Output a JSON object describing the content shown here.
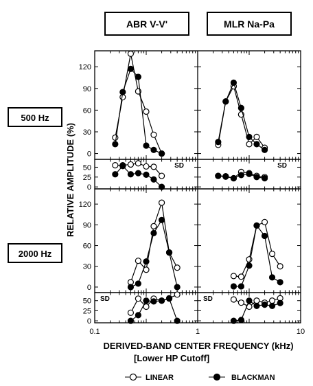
{
  "column_headers": [
    "ABR V-V'",
    "MLR Na-Pa"
  ],
  "row_labels": [
    "500 Hz",
    "2000 Hz"
  ],
  "ylabel": "RELATIVE AMPLITUDE (%)",
  "xlabel_line1": "DERIVED-BAND CENTER FREQUENCY (kHz)",
  "xlabel_line2": "[Lower HP Cutoff]",
  "panel_tag": "SD",
  "x_tick_labels": [
    "0.1",
    "1",
    "10"
  ],
  "amp_ticks": [
    "0",
    "30",
    "60",
    "90",
    "120"
  ],
  "sd_ticks": [
    "0",
    "25",
    "50"
  ],
  "legend": [
    {
      "label": "LINEAR",
      "marker": "open-circle",
      "color": "#ffffff"
    },
    {
      "label": "BLACKMAN",
      "marker": "filled-circle",
      "color": "#000000"
    }
  ],
  "chart_data": {
    "type": "line",
    "x_scale": "log",
    "xlim": [
      0.1,
      10
    ],
    "amp_ylim": [
      -8,
      142
    ],
    "sd_ylim": [
      -5,
      70
    ],
    "panels": [
      {
        "stimulus": "500 Hz",
        "measure": "ABR V-V'",
        "kind": "amplitude",
        "series": [
          {
            "name": "LINEAR",
            "x": [
              0.25,
              0.35,
              0.5,
              0.7,
              1.0,
              1.4,
              2.0
            ],
            "y": [
              22,
              78,
              138,
              86,
              58,
              26,
              0
            ]
          },
          {
            "name": "BLACKMAN",
            "x": [
              0.25,
              0.35,
              0.5,
              0.7,
              1.0,
              1.4,
              2.0
            ],
            "y": [
              13,
              85,
              117,
              106,
              11,
              5,
              0
            ]
          }
        ]
      },
      {
        "stimulus": "500 Hz",
        "measure": "MLR Na-Pa",
        "kind": "amplitude",
        "series": [
          {
            "name": "LINEAR",
            "x": [
              0.25,
              0.35,
              0.5,
              0.7,
              1.0,
              1.4,
              2.0
            ],
            "y": [
              12,
              72,
              93,
              54,
              13,
              23,
              8
            ]
          },
          {
            "name": "BLACKMAN",
            "x": [
              0.25,
              0.35,
              0.5,
              0.7,
              1.0,
              1.4,
              2.0
            ],
            "y": [
              16,
              72,
              98,
              63,
              23,
              13,
              5
            ]
          }
        ]
      },
      {
        "stimulus": "500 Hz",
        "measure": "ABR V-V'",
        "kind": "sd",
        "series": [
          {
            "name": "LINEAR",
            "x": [
              0.25,
              0.35,
              0.5,
              0.7,
              1.0,
              1.4,
              2.0
            ],
            "y": [
              55,
              55,
              57,
              60,
              52,
              51,
              28
            ]
          },
          {
            "name": "BLACKMAN",
            "x": [
              0.25,
              0.35,
              0.5,
              0.7,
              1.0,
              1.4,
              2.0
            ],
            "y": [
              32,
              53,
              32,
              35,
              31,
              19,
              0
            ]
          }
        ]
      },
      {
        "stimulus": "500 Hz",
        "measure": "MLR Na-Pa",
        "kind": "sd",
        "series": [
          {
            "name": "LINEAR",
            "x": [
              0.25,
              0.35,
              0.5,
              0.7,
              1.0,
              1.4,
              2.0
            ],
            "y": [
              28,
              27,
              22,
              38,
              35,
              28,
              25
            ]
          },
          {
            "name": "BLACKMAN",
            "x": [
              0.25,
              0.35,
              0.5,
              0.7,
              1.0,
              1.4,
              2.0
            ],
            "y": [
              28,
              26,
              22,
              30,
              33,
              25,
              22
            ]
          }
        ]
      },
      {
        "stimulus": "2000 Hz",
        "measure": "ABR V-V'",
        "kind": "amplitude",
        "series": [
          {
            "name": "LINEAR",
            "x": [
              0.5,
              0.7,
              1.0,
              1.4,
              2.0,
              2.8,
              4.0
            ],
            "y": [
              7,
              38,
              25,
              88,
              122,
              50,
              28
            ]
          },
          {
            "name": "BLACKMAN",
            "x": [
              0.5,
              0.7,
              1.0,
              1.4,
              2.0,
              2.8,
              4.0
            ],
            "y": [
              0,
              5,
              37,
              78,
              97,
              50,
              0
            ]
          }
        ]
      },
      {
        "stimulus": "2000 Hz",
        "measure": "MLR Na-Pa",
        "kind": "amplitude",
        "series": [
          {
            "name": "LINEAR",
            "x": [
              0.5,
              0.7,
              1.0,
              1.4,
              2.0,
              2.8,
              4.0
            ],
            "y": [
              16,
              15,
              40,
              89,
              94,
              48,
              30
            ]
          },
          {
            "name": "BLACKMAN",
            "x": [
              0.5,
              0.7,
              1.0,
              1.4,
              2.0,
              2.8,
              4.0
            ],
            "y": [
              1,
              1,
              31,
              89,
              74,
              14,
              7
            ]
          }
        ]
      },
      {
        "stimulus": "2000 Hz",
        "measure": "ABR V-V'",
        "kind": "sd",
        "series": [
          {
            "name": "LINEAR",
            "x": [
              0.5,
              0.7,
              1.0,
              1.4,
              2.0,
              2.8,
              4.0
            ],
            "y": [
              20,
              55,
              35,
              55,
              50,
              56,
              65
            ]
          },
          {
            "name": "BLACKMAN",
            "x": [
              0.5,
              0.7,
              1.0,
              1.4,
              2.0,
              2.8,
              4.0
            ],
            "y": [
              0,
              14,
              50,
              48,
              50,
              55,
              0
            ]
          }
        ]
      },
      {
        "stimulus": "2000 Hz",
        "measure": "MLR Na-Pa",
        "kind": "sd",
        "series": [
          {
            "name": "LINEAR",
            "x": [
              0.5,
              0.7,
              1.0,
              1.4,
              2.0,
              2.8,
              4.0
            ],
            "y": [
              53,
              45,
              35,
              50,
              45,
              50,
              56
            ]
          },
          {
            "name": "BLACKMAN",
            "x": [
              0.5,
              0.7,
              1.0,
              1.4,
              2.0,
              2.8,
              4.0
            ],
            "y": [
              0,
              2,
              50,
              37,
              40,
              37,
              44
            ]
          }
        ]
      }
    ]
  }
}
